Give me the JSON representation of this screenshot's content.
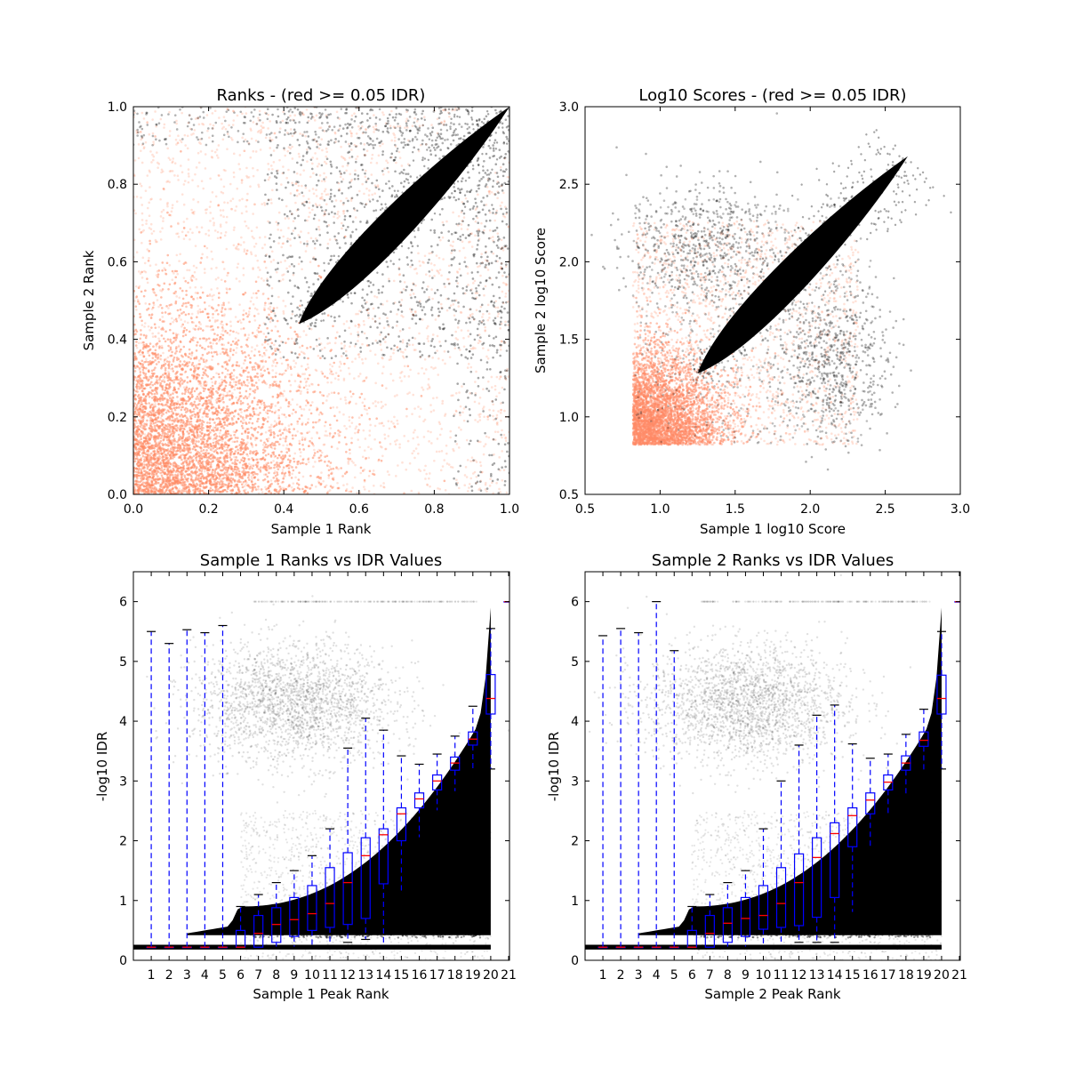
{
  "chart_data": [
    {
      "type": "scatter",
      "title": "Ranks - (red >= 0.05 IDR)",
      "xlabel": "Sample 1 Rank",
      "ylabel": "Sample 2 Rank",
      "xlim": [
        0.0,
        1.0
      ],
      "ylim": [
        0.0,
        1.0
      ],
      "xticks": [
        "0.0",
        "0.2",
        "0.4",
        "0.6",
        "0.8",
        "1.0"
      ],
      "yticks": [
        "0.0",
        "0.2",
        "0.4",
        "0.6",
        "0.8",
        "1.0"
      ],
      "colors": {
        "below_threshold": "#000000",
        "above_threshold": "#ff8a65"
      },
      "summary": {
        "reproducible_band_start": [
          0.44,
          0.44
        ],
        "reproducible_band_end": [
          1.0,
          1.0
        ],
        "irreproducible_region": "dense cloud from (0,0) spreading to ~0.6 in both ranks"
      }
    },
    {
      "type": "scatter",
      "title": "Log10 Scores - (red >= 0.05 IDR)",
      "xlabel": "Sample 1 log10 Score",
      "ylabel": "Sample 2 log10 Score",
      "xlim": [
        0.5,
        3.0
      ],
      "ylim": [
        0.5,
        3.0
      ],
      "xticks": [
        "0.5",
        "1.0",
        "1.5",
        "2.0",
        "2.5",
        "3.0"
      ],
      "yticks": [
        "0.5",
        "1.0",
        "1.5",
        "2.0",
        "2.5",
        "3.0"
      ],
      "colors": {
        "below_threshold": "#000000",
        "above_threshold": "#ff8a65"
      },
      "summary": {
        "score_floor": 0.82,
        "reproducible_band_start": [
          1.25,
          1.28
        ],
        "reproducible_band_end": [
          2.65,
          2.68
        ]
      }
    },
    {
      "type": "boxplot",
      "title": "Sample 1 Ranks vs IDR Values",
      "xlabel": "Sample 1 Peak Rank",
      "ylabel": "-log10 IDR",
      "ylim": [
        0,
        6.5
      ],
      "yticks": [
        "0",
        "1",
        "2",
        "3",
        "4",
        "5",
        "6"
      ],
      "categories": [
        "1",
        "2",
        "3",
        "4",
        "5",
        "6",
        "7",
        "8",
        "9",
        "10",
        "11",
        "12",
        "13",
        "14",
        "15",
        "16",
        "17",
        "18",
        "19",
        "20",
        "21"
      ],
      "boxes": [
        {
          "min": 0.22,
          "q1": 0.22,
          "median": 0.22,
          "q3": 0.22,
          "max": 5.5
        },
        {
          "min": 0.22,
          "q1": 0.22,
          "median": 0.22,
          "q3": 0.22,
          "max": 5.3
        },
        {
          "min": 0.22,
          "q1": 0.22,
          "median": 0.22,
          "q3": 0.22,
          "max": 5.53
        },
        {
          "min": 0.22,
          "q1": 0.22,
          "median": 0.22,
          "q3": 0.22,
          "max": 5.48
        },
        {
          "min": 0.22,
          "q1": 0.22,
          "median": 0.22,
          "q3": 0.22,
          "max": 5.6
        },
        {
          "min": 0.22,
          "q1": 0.22,
          "median": 0.22,
          "q3": 0.5,
          "max": 0.9
        },
        {
          "min": 0.22,
          "q1": 0.22,
          "median": 0.45,
          "q3": 0.75,
          "max": 1.1
        },
        {
          "min": 0.22,
          "q1": 0.3,
          "median": 0.6,
          "q3": 0.88,
          "max": 1.3
        },
        {
          "min": 0.22,
          "q1": 0.4,
          "median": 0.68,
          "q3": 1.05,
          "max": 1.5
        },
        {
          "min": 0.22,
          "q1": 0.5,
          "median": 0.78,
          "q3": 1.25,
          "max": 1.75
        },
        {
          "min": 0.25,
          "q1": 0.55,
          "median": 0.95,
          "q3": 1.55,
          "max": 2.2
        },
        {
          "min": 0.3,
          "q1": 0.6,
          "median": 1.3,
          "q3": 1.8,
          "max": 3.55
        },
        {
          "min": 0.35,
          "q1": 0.7,
          "median": 1.75,
          "q3": 2.05,
          "max": 4.05
        },
        {
          "min": 0.25,
          "q1": 1.28,
          "median": 2.1,
          "q3": 2.2,
          "max": 3.85
        },
        {
          "min": 1.15,
          "q1": 2.0,
          "median": 2.45,
          "q3": 2.55,
          "max": 3.42
        },
        {
          "min": 2.05,
          "q1": 2.55,
          "median": 2.7,
          "q3": 2.8,
          "max": 3.28
        },
        {
          "min": 2.5,
          "q1": 2.85,
          "median": 3.0,
          "q3": 3.1,
          "max": 3.45
        },
        {
          "min": 2.82,
          "q1": 3.18,
          "median": 3.3,
          "q3": 3.4,
          "max": 3.75
        },
        {
          "min": 3.2,
          "q1": 3.6,
          "median": 3.7,
          "q3": 3.82,
          "max": 4.25
        },
        {
          "min": 3.2,
          "q1": 4.12,
          "median": 4.38,
          "q3": 4.78,
          "max": 5.55
        },
        {
          "min": 6.0,
          "q1": 6.0,
          "median": 6.0,
          "q3": 6.0,
          "max": 6.0
        }
      ]
    },
    {
      "type": "boxplot",
      "title": "Sample 2 Ranks vs IDR Values",
      "xlabel": "Sample 2 Peak Rank",
      "ylabel": "-log10 IDR",
      "ylim": [
        0,
        6.5
      ],
      "yticks": [
        "0",
        "1",
        "2",
        "3",
        "4",
        "5",
        "6"
      ],
      "categories": [
        "1",
        "2",
        "3",
        "4",
        "5",
        "6",
        "7",
        "8",
        "9",
        "10",
        "11",
        "12",
        "13",
        "14",
        "15",
        "16",
        "17",
        "18",
        "19",
        "20",
        "21"
      ],
      "boxes": [
        {
          "min": 0.22,
          "q1": 0.22,
          "median": 0.22,
          "q3": 0.22,
          "max": 5.43
        },
        {
          "min": 0.22,
          "q1": 0.22,
          "median": 0.22,
          "q3": 0.22,
          "max": 5.55
        },
        {
          "min": 0.22,
          "q1": 0.22,
          "median": 0.22,
          "q3": 0.22,
          "max": 5.48
        },
        {
          "min": 0.22,
          "q1": 0.22,
          "median": 0.22,
          "q3": 0.22,
          "max": 6.0
        },
        {
          "min": 0.22,
          "q1": 0.22,
          "median": 0.22,
          "q3": 0.22,
          "max": 5.18
        },
        {
          "min": 0.22,
          "q1": 0.22,
          "median": 0.22,
          "q3": 0.5,
          "max": 0.9
        },
        {
          "min": 0.22,
          "q1": 0.22,
          "median": 0.45,
          "q3": 0.75,
          "max": 1.1
        },
        {
          "min": 0.22,
          "q1": 0.3,
          "median": 0.62,
          "q3": 0.88,
          "max": 1.3
        },
        {
          "min": 0.22,
          "q1": 0.4,
          "median": 0.7,
          "q3": 1.05,
          "max": 1.5
        },
        {
          "min": 0.22,
          "q1": 0.52,
          "median": 0.75,
          "q3": 1.25,
          "max": 2.2
        },
        {
          "min": 0.25,
          "q1": 0.55,
          "median": 0.95,
          "q3": 1.55,
          "max": 3.0
        },
        {
          "min": 0.3,
          "q1": 0.58,
          "median": 1.3,
          "q3": 1.78,
          "max": 3.6
        },
        {
          "min": 0.3,
          "q1": 0.72,
          "median": 1.72,
          "q3": 2.05,
          "max": 4.1
        },
        {
          "min": 0.3,
          "q1": 1.05,
          "median": 2.12,
          "q3": 2.3,
          "max": 4.27
        },
        {
          "min": 0.8,
          "q1": 1.9,
          "median": 2.42,
          "q3": 2.55,
          "max": 3.62
        },
        {
          "min": 1.85,
          "q1": 2.45,
          "median": 2.68,
          "q3": 2.8,
          "max": 3.38
        },
        {
          "min": 2.4,
          "q1": 2.85,
          "median": 2.98,
          "q3": 3.1,
          "max": 3.45
        },
        {
          "min": 2.78,
          "q1": 3.18,
          "median": 3.3,
          "q3": 3.42,
          "max": 3.78
        },
        {
          "min": 3.15,
          "q1": 3.58,
          "median": 3.68,
          "q3": 3.82,
          "max": 4.2
        },
        {
          "min": 3.2,
          "q1": 4.12,
          "median": 4.38,
          "q3": 4.77,
          "max": 5.5
        },
        {
          "min": 6.0,
          "q1": 6.0,
          "median": 6.0,
          "q3": 6.0,
          "max": 6.0
        }
      ]
    }
  ]
}
